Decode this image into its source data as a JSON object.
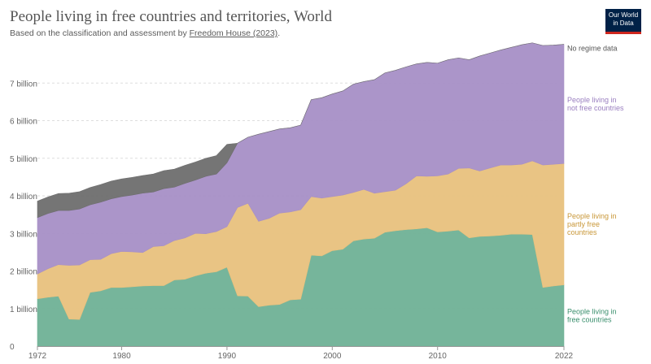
{
  "header": {
    "title": "People living in free countries and territories, World",
    "subtitle_prefix": "Based on the classification and assessment by ",
    "subtitle_source": "Freedom House (2023)",
    "subtitle_suffix": "."
  },
  "logo": {
    "line1": "Our World",
    "line2": "in Data"
  },
  "chart_data": {
    "type": "area",
    "stacked": true,
    "title": "People living in free countries and territories, World",
    "x": [
      1972,
      1973,
      1974,
      1975,
      1976,
      1977,
      1978,
      1979,
      1980,
      1981,
      1982,
      1983,
      1984,
      1985,
      1986,
      1987,
      1988,
      1989,
      1990,
      1991,
      1992,
      1993,
      1994,
      1995,
      1996,
      1997,
      1998,
      1999,
      2000,
      2001,
      2002,
      2003,
      2004,
      2005,
      2006,
      2007,
      2008,
      2009,
      2010,
      2011,
      2012,
      2013,
      2014,
      2015,
      2016,
      2017,
      2018,
      2019,
      2020,
      2021,
      2022
    ],
    "xlim": [
      1972,
      2022
    ],
    "x_ticks": [
      "1972",
      "1980",
      "1990",
      "2000",
      "2010",
      "2022"
    ],
    "x_tick_values": [
      1972,
      1980,
      1990,
      2000,
      2010,
      2022
    ],
    "ylim": [
      0,
      8
    ],
    "y_ticks": [
      "0",
      "1 billion",
      "2 billion",
      "3 billion",
      "4 billion",
      "5 billion",
      "6 billion",
      "7 billion"
    ],
    "y_tick_values": [
      0,
      1,
      2,
      3,
      4,
      5,
      6,
      7
    ],
    "y_unit": "billion",
    "grid": "horizontal dashed",
    "legend": "right, labels at series ends",
    "series": [
      {
        "name": "People living in free countries",
        "label_lines": [
          "People living in",
          "free countries"
        ],
        "color": "#6fb196",
        "label_color": "#3a8f6d",
        "values": [
          1.26,
          1.3,
          1.33,
          0.72,
          0.71,
          1.43,
          1.47,
          1.56,
          1.56,
          1.58,
          1.6,
          1.61,
          1.61,
          1.76,
          1.78,
          1.87,
          1.94,
          1.98,
          2.1,
          1.34,
          1.33,
          1.05,
          1.09,
          1.11,
          1.23,
          1.25,
          2.42,
          2.4,
          2.54,
          2.58,
          2.8,
          2.85,
          2.87,
          3.03,
          3.07,
          3.1,
          3.12,
          3.15,
          3.04,
          3.06,
          3.09,
          2.88,
          2.92,
          2.93,
          2.95,
          2.98,
          2.98,
          2.97,
          1.56,
          1.6,
          1.63
        ]
      },
      {
        "name": "People living in partly free countries",
        "label_lines": [
          "People living in",
          "partly free",
          "countries"
        ],
        "color": "#e8c17d",
        "label_color": "#c9983a",
        "values": [
          0.66,
          0.76,
          0.84,
          1.43,
          1.45,
          0.87,
          0.84,
          0.9,
          0.96,
          0.93,
          0.89,
          1.04,
          1.06,
          1.05,
          1.1,
          1.13,
          1.05,
          1.07,
          1.08,
          2.35,
          2.47,
          2.27,
          2.31,
          2.43,
          2.34,
          2.38,
          1.56,
          1.54,
          1.44,
          1.44,
          1.29,
          1.32,
          1.2,
          1.08,
          1.08,
          1.22,
          1.41,
          1.37,
          1.49,
          1.52,
          1.64,
          1.86,
          1.74,
          1.81,
          1.87,
          1.84,
          1.86,
          1.96,
          3.26,
          3.24,
          3.23
        ]
      },
      {
        "name": "People living in not free countries",
        "label_lines": [
          "People living in",
          "not free countries"
        ],
        "color": "#a78fc6",
        "label_color": "#9a7fc0",
        "values": [
          1.5,
          1.47,
          1.44,
          1.46,
          1.49,
          1.46,
          1.52,
          1.46,
          1.46,
          1.51,
          1.58,
          1.45,
          1.52,
          1.42,
          1.45,
          1.42,
          1.53,
          1.53,
          1.7,
          1.71,
          1.76,
          2.32,
          2.31,
          2.24,
          2.24,
          2.25,
          2.58,
          2.67,
          2.73,
          2.77,
          2.88,
          2.87,
          3.02,
          3.16,
          3.19,
          3.11,
          2.98,
          3.03,
          3.0,
          3.04,
          2.94,
          2.88,
          3.06,
          3.06,
          3.06,
          3.13,
          3.18,
          3.14,
          3.18,
          3.17,
          3.17
        ]
      },
      {
        "name": "No regime data",
        "label_lines": [
          "No regime data"
        ],
        "color": "#6e6e6e",
        "label_color": "#555555",
        "values": [
          0.44,
          0.44,
          0.45,
          0.46,
          0.46,
          0.46,
          0.47,
          0.47,
          0.47,
          0.47,
          0.47,
          0.48,
          0.48,
          0.48,
          0.48,
          0.48,
          0.48,
          0.49,
          0.49,
          0.0,
          0.0,
          0.0,
          0.0,
          0.0,
          0.0,
          0.0,
          0.0,
          0.0,
          0.0,
          0.0,
          0.0,
          0.0,
          0.0,
          0.0,
          0.0,
          0.0,
          0.0,
          0.0,
          0.0,
          0.0,
          0.0,
          0.0,
          0.0,
          0.0,
          0.0,
          0.0,
          0.0,
          0.0,
          0.0,
          0.0,
          0.0
        ]
      }
    ]
  }
}
